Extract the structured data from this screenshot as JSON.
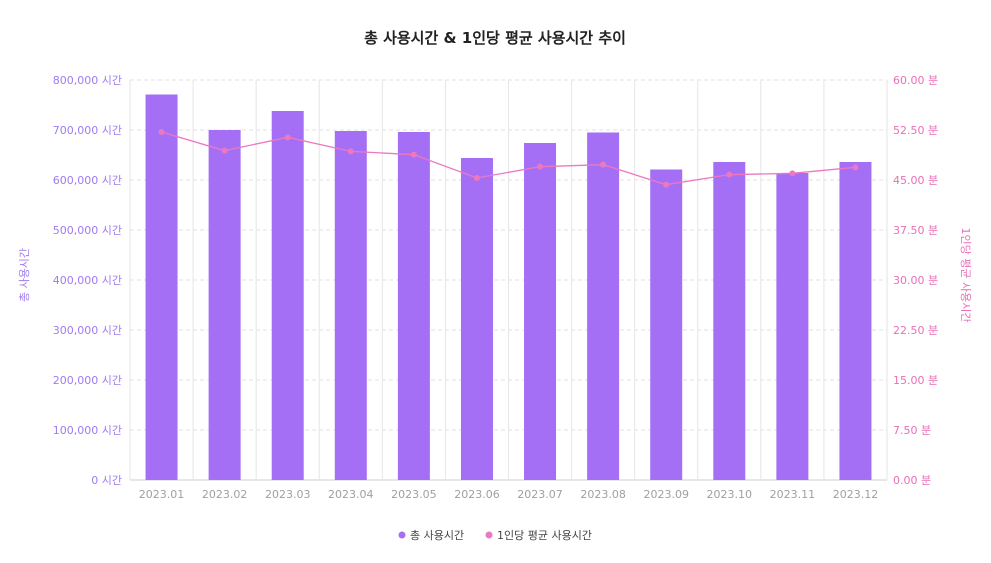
{
  "chart_data": {
    "type": "bar",
    "title": "총 사용시간 & 1인당 평균 사용시간 추이",
    "categories": [
      "2023.01",
      "2023.02",
      "2023.03",
      "2023.04",
      "2023.05",
      "2023.06",
      "2023.07",
      "2023.08",
      "2023.09",
      "2023.10",
      "2023.11",
      "2023.12"
    ],
    "series": [
      {
        "name": "총 사용시간",
        "kind": "bar",
        "axis": "left",
        "color": "#a56ff5",
        "values": [
          771000,
          700000,
          738000,
          698000,
          696000,
          644000,
          674000,
          695000,
          621000,
          636000,
          614000,
          636000
        ]
      },
      {
        "name": "1인당 평균 사용시간",
        "kind": "line",
        "axis": "right",
        "color": "#ec78c1",
        "values": [
          52.2,
          49.4,
          51.4,
          49.3,
          48.8,
          45.3,
          47.0,
          47.3,
          44.3,
          45.8,
          46.0,
          46.9
        ]
      }
    ],
    "left_axis": {
      "label": "총 사용시간",
      "ylim": [
        0,
        800000
      ],
      "ticks": [
        "0 시간",
        "100,000 시간",
        "200,000 시간",
        "300,000 시간",
        "400,000 시간",
        "500,000 시간",
        "600,000 시간",
        "700,000 시간",
        "800,000 시간"
      ]
    },
    "right_axis": {
      "label": "1인당 평균 사용시간",
      "ylim": [
        0,
        60
      ],
      "ticks": [
        "0.00 분",
        "7.50 분",
        "15.00 분",
        "22.50 분",
        "30.00 분",
        "37.50 분",
        "45.00 분",
        "52.50 분",
        "60.00 분"
      ]
    },
    "grid": true,
    "legend": "bottom-center"
  }
}
